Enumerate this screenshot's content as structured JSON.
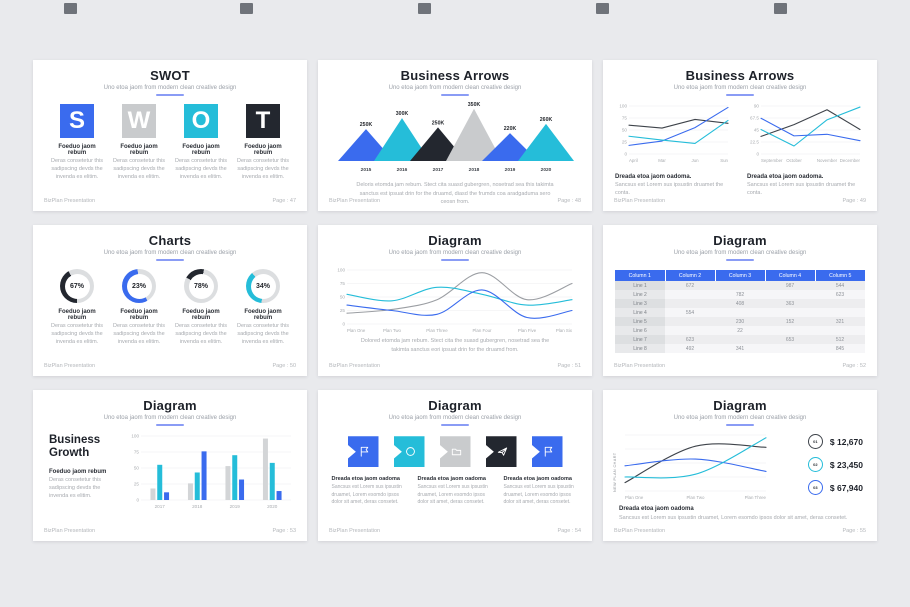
{
  "colors": {
    "blue": "#3a6bee",
    "cyan": "#25bdd9",
    "dark": "#23272f",
    "gray": "#c9cbcd",
    "lightgray": "#d3d5d7",
    "ink": "#3e434a",
    "softgray": "#9b9ea3",
    "ring": "#dcdee0",
    "grid": "#ededef",
    "tick": "#a9acb0"
  },
  "slides": [
    {
      "title": "SWOT",
      "subtitle": "Uno etoa jaom from modern clean creative design",
      "items": [
        {
          "letter": "S",
          "color": "blue",
          "caption": "Foeduo jaom rebum",
          "desc": "Deras consetetur this sadipscing devds the invenda es elitim."
        },
        {
          "letter": "W",
          "color": "gray",
          "caption": "Foeduo jaom rebum",
          "desc": "Deras consetetur this sadipscing devds the invenda es elitim."
        },
        {
          "letter": "O",
          "color": "cyan",
          "caption": "Foeduo jaom rebum",
          "desc": "Deras consetetur this sadipscing devds the invenda es elitim."
        },
        {
          "letter": "T",
          "color": "dark",
          "caption": "Foeduo jaom rebum",
          "desc": "Deras consetetur this sadipscing devds the invenda es elitim."
        }
      ],
      "footer_left": "BizPlan Presentation",
      "footer_right": "Page : 47"
    },
    {
      "title": "Business Arrows",
      "subtitle": "Uno etoa jaom from modern clean creative design",
      "chart": {
        "type": "triangle",
        "categories": [
          "2015",
          "2016",
          "2017",
          "2018",
          "2019",
          "2020"
        ],
        "labels": [
          "250K",
          "300K",
          "250K",
          "350K",
          "220K",
          "260K"
        ],
        "values": [
          55,
          74,
          58,
          90,
          48,
          64
        ],
        "colors": [
          "blue",
          "cyan",
          "dark",
          "gray",
          "blue",
          "cyan"
        ],
        "ymax": 100
      },
      "body": "Deloris etomda jam rebum. Stect cita suasd gubergren, nosetrad sea this takimta sanctus est ipsuat drin for the druamd, diasd the frumds coa aradgaduma sero ceosn from.",
      "footer_left": "BizPlan Presentation",
      "footer_right": "Page : 48"
    },
    {
      "title": "Business Arrows",
      "subtitle": "Uno etoa jaom from modern clean creative design",
      "charts": [
        {
          "type": "line",
          "x": [
            "April",
            "Mar",
            "Jun",
            "Sun"
          ],
          "yticks": [
            "100",
            "75",
            "50",
            "25",
            "0"
          ],
          "ymax": 100,
          "series": [
            {
              "name": "dark-line",
              "color": "ink",
              "values": [
                60,
                54,
                72,
                64
              ]
            },
            {
              "name": "blue-line",
              "color": "blue",
              "values": [
                18,
                27,
                55,
                97
              ]
            },
            {
              "name": "cyan-line",
              "color": "cyan",
              "values": [
                37,
                29,
                22,
                70
              ]
            }
          ],
          "caption": "Dreada etoa jaom oadoma.",
          "desc": "Sancsus est Lorem sus ipsustin druamet the conta."
        },
        {
          "type": "line",
          "x": [
            "September",
            "October",
            "November",
            "December"
          ],
          "yticks": [
            "90",
            "67.5",
            "45",
            "22.5",
            "0"
          ],
          "ymax": 90,
          "series": [
            {
              "name": "dark-line",
              "color": "ink",
              "values": [
                33,
                55,
                83,
                46
              ]
            },
            {
              "name": "cyan-line",
              "color": "cyan",
              "values": [
                46,
                15,
                64,
                88
              ]
            },
            {
              "name": "blue-line",
              "color": "blue",
              "values": [
                67,
                34,
                37,
                25
              ]
            }
          ],
          "caption": "Dreada etoa jaom oadoma.",
          "desc": "Sancsus est Lorem sus ipsustin druamet the conta."
        }
      ],
      "footer_left": "BizPlan Presentation",
      "footer_right": "Page : 49"
    },
    {
      "title": "Charts",
      "subtitle": "Uno etoa jaom from modern clean creative design",
      "items": [
        {
          "pct": "67%",
          "color": "dark",
          "start": 180,
          "sweep": 150,
          "caption": "Foeduo jaom rebum",
          "desc": "Deras consetetur this sadipscing devds the invenda es elitim."
        },
        {
          "pct": "23%",
          "color": "blue",
          "start": 150,
          "sweep": 205,
          "caption": "Foeduo jaom rebum",
          "desc": "Deras consetetur this sadipscing devds the invenda es elitim."
        },
        {
          "pct": "78%",
          "color": "dark",
          "start": 300,
          "sweep": 70,
          "caption": "Foeduo jaom rebum",
          "desc": "Deras consetetur this sadipscing devds the invenda es elitim."
        },
        {
          "pct": "34%",
          "color": "cyan",
          "start": 185,
          "sweep": 135,
          "caption": "Foeduo jaom rebum",
          "desc": "Deras consetetur this sadipscing devds the invenda es elitim."
        }
      ],
      "footer_left": "BizPlan Presentation",
      "footer_right": "Page : 50"
    },
    {
      "title": "Diagram",
      "subtitle": "Uno etoa jaom from modern clean creative design",
      "chart": {
        "type": "line",
        "smooth": true,
        "x": [
          "Plan One",
          "Plan Two",
          "Plan Three",
          "Plan Four",
          "Plan Five",
          "Plan Six"
        ],
        "yticks": [
          "100",
          "75",
          "50",
          "25",
          "0"
        ],
        "ymax": 100,
        "series": [
          {
            "name": "gray-wave",
            "color": "softgray",
            "values": [
              20,
              27,
              45,
              95,
              45,
              75
            ]
          },
          {
            "name": "cyan-wave",
            "color": "cyan",
            "values": [
              55,
              43,
              68,
              55,
              35,
              45
            ]
          },
          {
            "name": "blue-wave",
            "color": "blue",
            "values": [
              35,
              25,
              18,
              63,
              12,
              25
            ]
          }
        ]
      },
      "body": "Dolored etomda jam rebum. Stect cita the suasd gubergren, nosetrad sea the takimta sanctus eori ipsuat drin for the druamd from.",
      "footer_left": "BizPlan Presentation",
      "footer_right": "Page : 51"
    },
    {
      "title": "Diagram",
      "subtitle": "Uno etoa jaom from modern clean creative design",
      "table": {
        "headers": [
          "Column 1",
          "Column 2",
          "Column 3",
          "Column 4",
          "Column 5"
        ],
        "rows": [
          {
            "label": "Line 1",
            "cells": [
              "672",
              "",
              "987",
              "544"
            ]
          },
          {
            "label": "Line 2",
            "cells": [
              "",
              "782",
              "",
              "623"
            ]
          },
          {
            "label": "Line 3",
            "cells": [
              "",
              "408",
              "363",
              ""
            ]
          },
          {
            "label": "Line 4",
            "cells": [
              "554",
              "",
              "",
              ""
            ]
          },
          {
            "label": "Line 5",
            "cells": [
              "",
              "230",
              "152",
              "321"
            ]
          },
          {
            "label": "Line 6",
            "cells": [
              "",
              "22",
              "",
              ""
            ]
          },
          {
            "label": "Line 7",
            "cells": [
              "623",
              "",
              "653",
              "512"
            ]
          },
          {
            "label": "Line 8",
            "cells": [
              "492",
              "341",
              "",
              "845"
            ]
          }
        ]
      },
      "footer_left": "BizPlan Presentation",
      "footer_right": "Page : 52"
    },
    {
      "title": "Diagram",
      "subtitle": "Uno etoa jaom from modern clean creative design",
      "heading": "Business Growth",
      "caption": "Foeduo jaom rebum",
      "desc": "Deras consetetur this sadipscing devds the invenda es elitim.",
      "chart": {
        "type": "bar",
        "categories": [
          "2017",
          "2018",
          "2019",
          "2020"
        ],
        "yticks": [
          "100",
          "75",
          "50",
          "25",
          "0"
        ],
        "ymax": 100,
        "series": [
          {
            "name": "gray-bars",
            "color": "lightgray",
            "values": [
              18,
              26,
              53,
              96
            ]
          },
          {
            "name": "cyan-bars",
            "color": "cyan",
            "values": [
              55,
              43,
              70,
              58
            ]
          },
          {
            "name": "blue-bars",
            "color": "blue",
            "values": [
              12,
              76,
              32,
              14
            ]
          }
        ]
      },
      "footer_left": "BizPlan Presentation",
      "footer_right": "Page : 53"
    },
    {
      "title": "Diagram",
      "subtitle": "Uno etoa jaom from modern clean creative design",
      "boxes": [
        {
          "icon": "flag-icon",
          "color": "blue"
        },
        {
          "icon": "circle-icon",
          "color": "cyan"
        },
        {
          "icon": "folder-icon",
          "color": "gray"
        },
        {
          "icon": "paper-plane-icon",
          "color": "dark"
        },
        {
          "icon": "flag-icon",
          "color": "blue"
        }
      ],
      "texts": [
        {
          "title": "Dreada etoa jaom oadoma",
          "desc": "Sancsus est Lorem sus ipsustin druamet, Lorem esomdo ipsos dolor sit amet, deras consetet."
        },
        {
          "title": "Dreada etoa jaom oadoma",
          "desc": "Sancsus est Lorem sus ipsustin druamet, Lorem esomdo ipsos dolor sit amet, deras consetet."
        },
        {
          "title": "Dreada etoa jaom oadoma",
          "desc": "Sancsus est Lorem sus ipsustin druamet, Lorem esomdo ipsos dolor sit amet, deras consetet."
        }
      ],
      "footer_left": "BizPlan Presentation",
      "footer_right": "Page : 54"
    },
    {
      "title": "Diagram",
      "subtitle": "Uno etoa jaom from modern clean creative design",
      "chart": {
        "type": "line",
        "smooth": true,
        "axis_label": "NEW PLAN CHART",
        "x": [
          "Plan One",
          "Plan Two",
          "Plan Three"
        ],
        "grid": 5,
        "ymax": 100,
        "series": [
          {
            "name": "dark-line",
            "color": "ink",
            "values": [
              15,
              80,
              78
            ]
          },
          {
            "name": "blue-line",
            "color": "blue",
            "values": [
              45,
              57,
              35
            ]
          },
          {
            "name": "cyan-line",
            "color": "cyan",
            "values": [
              25,
              30,
              95
            ]
          }
        ]
      },
      "badges": [
        {
          "num": "01",
          "color": "ink",
          "value": "$ 12,670"
        },
        {
          "num": "02",
          "color": "cyan",
          "value": "$ 23,450"
        },
        {
          "num": "03",
          "color": "blue",
          "value": "$ 67,940"
        }
      ],
      "caption": "Dreada etoa jaom oadoma",
      "desc": "Sancsus est Lorem sus ipsustin druamet, Lorem esomdo ipsos dolor sit amet, deras consetet.",
      "footer_left": "BizPlan Presentation",
      "footer_right": "Page : 55"
    }
  ]
}
